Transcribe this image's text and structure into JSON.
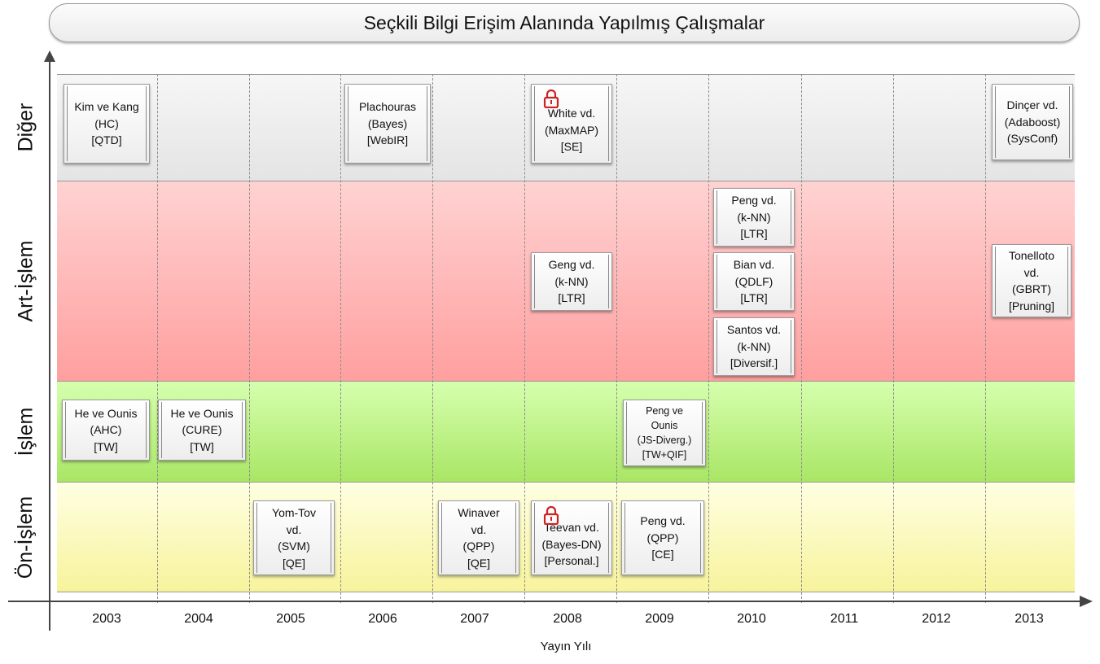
{
  "title": "Seçkili Bilgi Erişim Alanında Yapılmış Çalışmalar",
  "x_axis_label": "Yayın Yılı",
  "years": [
    "2003",
    "2004",
    "2005",
    "2006",
    "2007",
    "2008",
    "2009",
    "2010",
    "2011",
    "2012",
    "2013"
  ],
  "lanes": [
    {
      "id": "diger",
      "label": "Diğer"
    },
    {
      "id": "art",
      "label": "Art-İşlem"
    },
    {
      "id": "islem",
      "label": "İşlem"
    },
    {
      "id": "on",
      "label": "Ön-İşlem"
    }
  ],
  "colors": {
    "diger": "#eeeeee",
    "art": "#ffb9b9",
    "islem": "#c2f58a",
    "on": "#fbf8be",
    "lock": "#cc2222"
  },
  "cards": [
    {
      "lane": "diger",
      "year": "2003",
      "lines": [
        "Kim ve Kang",
        "(HC)",
        "[QTD]"
      ]
    },
    {
      "lane": "diger",
      "year": "2006",
      "lines": [
        "Plachouras",
        "(Bayes)",
        "[WebIR]"
      ]
    },
    {
      "lane": "diger",
      "year": "2008",
      "lines": [
        "White vd.",
        "(MaxMAP)",
        "[SE]"
      ],
      "icon": "lock-icon"
    },
    {
      "lane": "diger",
      "year": "2013",
      "lines": [
        "Dinçer vd.",
        "(Adaboost)",
        "(SysConf)"
      ]
    },
    {
      "lane": "art",
      "year": "2010",
      "lines": [
        "Peng vd.",
        "(k-NN)",
        "[LTR]"
      ]
    },
    {
      "lane": "art",
      "year": "2008",
      "lines": [
        "Geng vd.",
        "(k-NN)",
        "[LTR]"
      ]
    },
    {
      "lane": "art",
      "year": "2010",
      "lines": [
        "Bian vd.",
        "(QDLF)",
        "[LTR]"
      ]
    },
    {
      "lane": "art",
      "year": "2013",
      "lines": [
        "Tonelloto",
        "vd.",
        "(GBRT)",
        "[Pruning]"
      ]
    },
    {
      "lane": "art",
      "year": "2010",
      "lines": [
        "Santos vd.",
        "(k-NN)",
        "[Diversif.]"
      ]
    },
    {
      "lane": "islem",
      "year": "2003",
      "lines": [
        "He ve Ounis",
        "(AHC)",
        "[TW]"
      ]
    },
    {
      "lane": "islem",
      "year": "2004",
      "lines": [
        "He ve Ounis",
        "(CURE)",
        "[TW]"
      ]
    },
    {
      "lane": "islem",
      "year": "2009",
      "lines": [
        "Peng ve",
        "Ounis",
        "(JS-Diverg.)",
        "[TW+QIF]"
      ]
    },
    {
      "lane": "on",
      "year": "2005",
      "lines": [
        "Yom-Tov",
        "vd.",
        "(SVM)",
        "[QE]"
      ]
    },
    {
      "lane": "on",
      "year": "2007",
      "lines": [
        "Winaver",
        "vd.",
        "(QPP)",
        "[QE]"
      ]
    },
    {
      "lane": "on",
      "year": "2008",
      "lines": [
        "Teevan vd.",
        "(Bayes-DN)",
        "[Personal.]"
      ],
      "icon": "lock-icon"
    },
    {
      "lane": "on",
      "year": "2009",
      "lines": [
        "Peng vd.",
        "(QPP)",
        "[CE]"
      ]
    }
  ]
}
